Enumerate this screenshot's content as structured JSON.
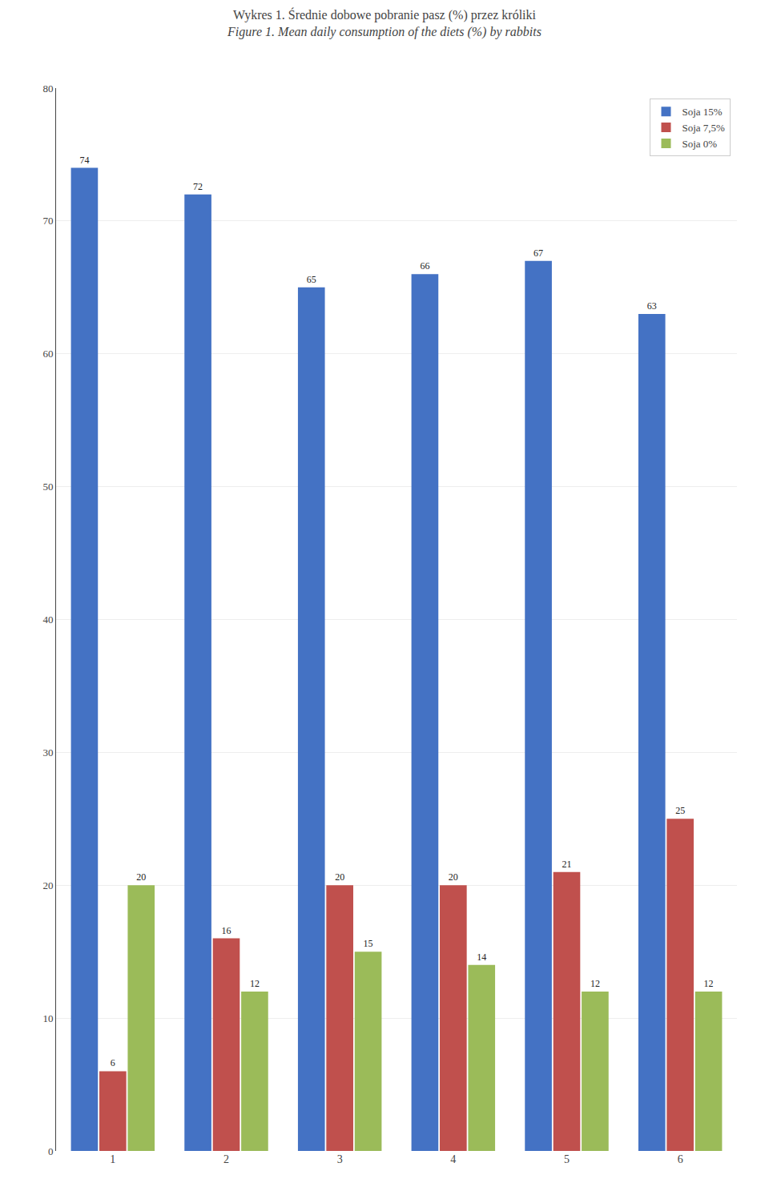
{
  "chart_data": {
    "type": "bar",
    "title": "Wykres 1. Średnie dobowe pobranie pasz (%) przez króliki",
    "subtitle": "Figure 1. Mean daily consumption of the diets (%) by rabbits",
    "categories": [
      1,
      2,
      3,
      4,
      5,
      6
    ],
    "series": [
      {
        "name": "Soja 15%",
        "color": "#4472c4",
        "values": [
          74,
          72,
          65,
          66,
          67,
          63
        ]
      },
      {
        "name": "Soja 7,5%",
        "color": "#c0504d",
        "values": [
          6,
          16,
          20,
          20,
          21,
          25
        ]
      },
      {
        "name": "Soja 0%",
        "color": "#9bbb59",
        "values": [
          20,
          12,
          15,
          14,
          12,
          12
        ]
      }
    ],
    "ylim": [
      0,
      80
    ],
    "yticks": [
      0,
      10,
      20,
      30,
      40,
      50,
      60,
      70,
      80
    ],
    "grid": true,
    "legend": "upper right",
    "data_labels": true
  }
}
